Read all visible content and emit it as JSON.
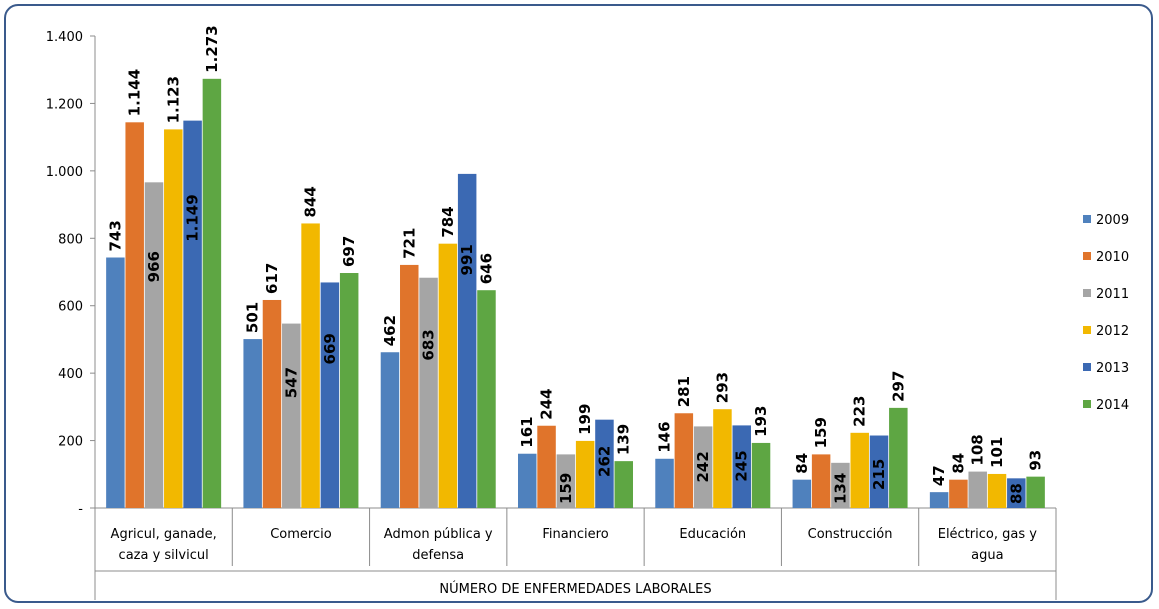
{
  "chart_data": {
    "type": "bar",
    "title": "",
    "xlabel": "NÚMERO DE ENFERMEDADES LABORALES",
    "ylabel": "",
    "ylim": [
      0,
      1400
    ],
    "yticks": [
      {
        "value": 0,
        "label": "-"
      },
      {
        "value": 200,
        "label": "200"
      },
      {
        "value": 400,
        "label": "400"
      },
      {
        "value": 600,
        "label": "600"
      },
      {
        "value": 800,
        "label": "800"
      },
      {
        "value": 1000,
        "label": "1.000"
      },
      {
        "value": 1200,
        "label": "1.200"
      },
      {
        "value": 1400,
        "label": "1.400"
      }
    ],
    "categories": [
      [
        "Agricul, ganade,",
        "caza y silvicul"
      ],
      [
        "Comercio"
      ],
      [
        "Admon pública y",
        "defensa"
      ],
      [
        "Financiero"
      ],
      [
        "Educación"
      ],
      [
        "Construcción"
      ],
      [
        "Eléctrico, gas y",
        "agua"
      ]
    ],
    "series": [
      {
        "name": "2009",
        "color": "#4f81bd",
        "values": [
          743,
          501,
          462,
          161,
          146,
          84,
          47
        ],
        "labels": [
          "743",
          "501",
          "462",
          "161",
          "146",
          "84",
          "47"
        ]
      },
      {
        "name": "2010",
        "color": "#e0742b",
        "values": [
          1144,
          617,
          721,
          244,
          281,
          159,
          84
        ],
        "labels": [
          "1.144",
          "617",
          "721",
          "244",
          "281",
          "159",
          "84"
        ]
      },
      {
        "name": "2011",
        "color": "#a5a5a5",
        "values": [
          966,
          547,
          683,
          159,
          242,
          134,
          108
        ],
        "labels": [
          "966",
          "547",
          "683",
          "159",
          "242",
          "134",
          "108"
        ]
      },
      {
        "name": "2012",
        "color": "#f2b800",
        "values": [
          1123,
          844,
          784,
          199,
          293,
          223,
          101
        ],
        "labels": [
          "1.123",
          "844",
          "784",
          "199",
          "293",
          "223",
          "101"
        ]
      },
      {
        "name": "2013",
        "color": "#3b69b3",
        "values": [
          1149,
          669,
          991,
          262,
          245,
          215,
          88
        ],
        "labels": [
          "1.149",
          "669",
          "991",
          "262",
          "245",
          "215",
          "88"
        ]
      },
      {
        "name": "2014",
        "color": "#5ea643",
        "values": [
          1273,
          697,
          646,
          139,
          193,
          297,
          93
        ],
        "labels": [
          "1.273",
          "697",
          "646",
          "139",
          "193",
          "297",
          "93"
        ]
      }
    ],
    "data_label_position": {
      "2009": [
        "above",
        "above",
        "above",
        "above",
        "above",
        "above",
        "above"
      ],
      "2010": [
        "above",
        "above",
        "above",
        "above",
        "above",
        "above",
        "above"
      ],
      "2011": [
        "inside",
        "inside",
        "inside",
        "inside",
        "inside",
        "inside",
        "above"
      ],
      "2012": [
        "above",
        "above",
        "above",
        "above",
        "above",
        "above",
        "above"
      ],
      "2013": [
        "inside",
        "inside",
        "inside",
        "inside",
        "inside",
        "inside",
        "inside"
      ],
      "2014": [
        "above",
        "above",
        "above",
        "above",
        "above",
        "above",
        "above"
      ]
    },
    "legend": "right",
    "grid": false
  }
}
